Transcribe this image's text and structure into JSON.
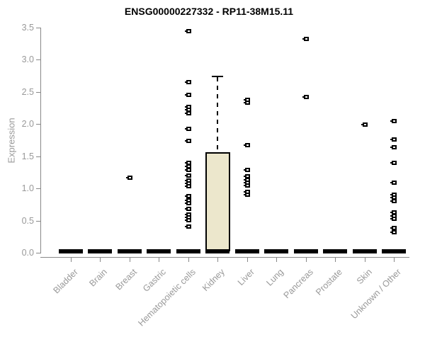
{
  "title": "ENSG00000227332 - RP11-38M15.11",
  "chart_data": {
    "type": "boxplot",
    "title": "ENSG00000227332 - RP11-38M15.11",
    "xlabel": "",
    "ylabel": "Expression",
    "ylim": [
      0,
      3.5
    ],
    "yticks": [
      "0.0",
      "0.5",
      "1.0",
      "1.5",
      "2.0",
      "2.5",
      "3.0",
      "3.5"
    ],
    "grid": false,
    "legend": false,
    "categories": [
      "Bladder",
      "Brain",
      "Breast",
      "Gastric",
      "Hematopoietic cells",
      "Kidney",
      "Liver",
      "Lung",
      "Pancreas",
      "Prostate",
      "Skin",
      "Unknown / Other"
    ],
    "boxes": [
      {
        "category": "Bladder",
        "q1": 0,
        "median": 0,
        "q3": 0,
        "whisker_low": 0,
        "whisker_high": 0,
        "outliers": []
      },
      {
        "category": "Brain",
        "q1": 0,
        "median": 0,
        "q3": 0,
        "whisker_low": 0,
        "whisker_high": 0,
        "outliers": []
      },
      {
        "category": "Breast",
        "q1": 0,
        "median": 0,
        "q3": 0,
        "whisker_low": 0,
        "whisker_high": 0,
        "outliers": [
          1.17
        ]
      },
      {
        "category": "Gastric",
        "q1": 0,
        "median": 0,
        "q3": 0,
        "whisker_low": 0,
        "whisker_high": 0,
        "outliers": []
      },
      {
        "category": "Hematopoietic cells",
        "q1": 0,
        "median": 0,
        "q3": 0,
        "whisker_low": 0,
        "whisker_high": 0,
        "outliers": [
          3.45,
          2.65,
          2.45,
          2.27,
          2.22,
          2.17,
          1.93,
          1.74,
          1.4,
          1.34,
          1.29,
          1.2,
          1.13,
          1.08,
          1.04,
          0.88,
          0.82,
          0.77,
          0.68,
          0.6,
          0.55,
          0.51,
          0.41
        ]
      },
      {
        "category": "Kidney",
        "q1": 0.02,
        "median": 0,
        "q3": 1.57,
        "whisker_low": 0,
        "whisker_high": 2.75,
        "outliers": []
      },
      {
        "category": "Liver",
        "q1": 0,
        "median": 0,
        "q3": 0,
        "whisker_low": 0,
        "whisker_high": 0,
        "outliers": [
          2.38,
          2.33,
          1.68,
          1.29,
          1.19,
          1.14,
          1.09,
          1.05,
          0.95,
          0.9
        ]
      },
      {
        "category": "Lung",
        "q1": 0,
        "median": 0,
        "q3": 0,
        "whisker_low": 0,
        "whisker_high": 0,
        "outliers": []
      },
      {
        "category": "Pancreas",
        "q1": 0,
        "median": 0,
        "q3": 0,
        "whisker_low": 0,
        "whisker_high": 0,
        "outliers": [
          3.32,
          2.42
        ]
      },
      {
        "category": "Prostate",
        "q1": 0,
        "median": 0,
        "q3": 0,
        "whisker_low": 0,
        "whisker_high": 0,
        "outliers": []
      },
      {
        "category": "Skin",
        "q1": 0,
        "median": 0,
        "q3": 0,
        "whisker_low": 0,
        "whisker_high": 0,
        "outliers": [
          1.99
        ]
      },
      {
        "category": "Unknown / Other",
        "q1": 0,
        "median": 0,
        "q3": 0,
        "whisker_low": 0,
        "whisker_high": 0,
        "outliers": [
          2.05,
          1.76,
          1.64,
          1.4,
          1.09,
          0.91,
          0.86,
          0.81,
          0.63,
          0.58,
          0.53,
          0.39,
          0.32
        ]
      }
    ],
    "colors": {
      "box_fill": "#ece7cc",
      "box_border": "#000000",
      "median": "#000000",
      "outlier": "#000000",
      "axis": "#888888",
      "tick_label": "#999999",
      "title": "#000000"
    }
  }
}
